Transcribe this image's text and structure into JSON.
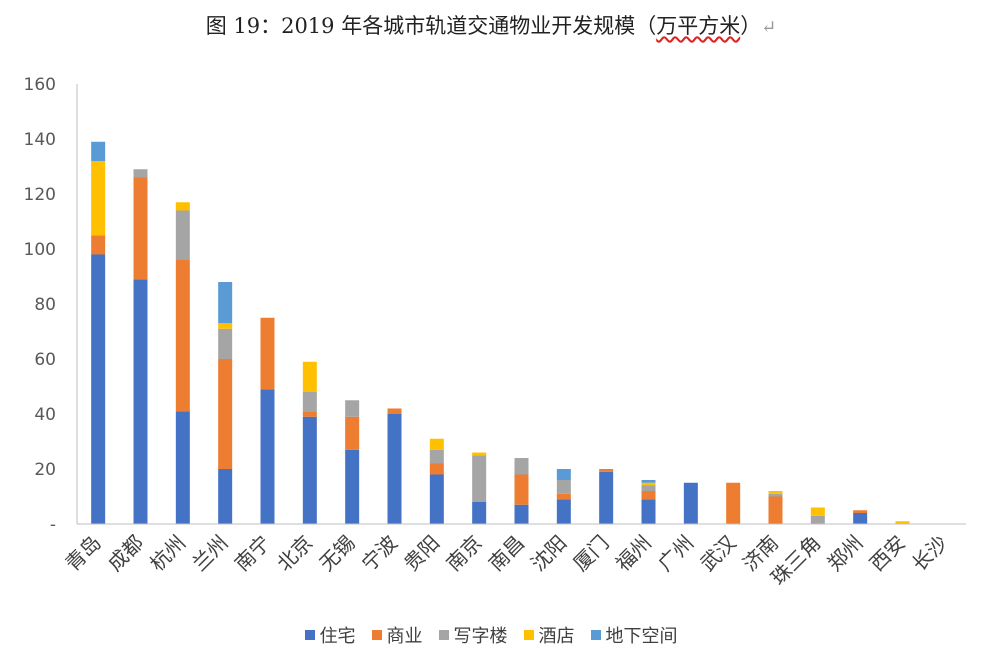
{
  "chart_data": {
    "type": "bar",
    "stacked": true,
    "title": "图 19：2019 年各城市轨道交通物业开发规模（万平方米）",
    "title_main": "图 19：2019 年各城市轨道交通物业开发规模（",
    "title_unit": "万平方米",
    "title_close": "）",
    "return_mark": "↵",
    "categories": [
      "青岛",
      "成都",
      "杭州",
      "兰州",
      "南宁",
      "北京",
      "无锡",
      "宁波",
      "贵阳",
      "南京",
      "南昌",
      "沈阳",
      "厦门",
      "福州",
      "广州",
      "武汉",
      "济南",
      "珠三角",
      "郑州",
      "西安",
      "长沙"
    ],
    "series": [
      {
        "name": "住宅",
        "color": "#4472c4",
        "values": [
          98,
          89,
          41,
          20,
          49,
          39,
          27,
          40,
          18,
          8,
          7,
          9,
          19,
          9,
          15,
          0,
          0,
          0,
          4,
          0,
          0
        ]
      },
      {
        "name": "商业",
        "color": "#ed7d31",
        "values": [
          7,
          37,
          55,
          40,
          26,
          2,
          12,
          2,
          4,
          0,
          11,
          2,
          1,
          3,
          0,
          15,
          10,
          0,
          1,
          0,
          0
        ]
      },
      {
        "name": "写字楼",
        "color": "#a5a5a5",
        "values": [
          0,
          3,
          18,
          11,
          0,
          7,
          6,
          0,
          5,
          17,
          6,
          5,
          0,
          2,
          0,
          0,
          1,
          3,
          0,
          0,
          0
        ]
      },
      {
        "name": "酒店",
        "color": "#ffc000",
        "values": [
          27,
          0,
          3,
          2,
          0,
          11,
          0,
          0,
          4,
          1,
          0,
          0,
          0,
          1,
          0,
          0,
          1,
          3,
          0,
          1,
          0
        ]
      },
      {
        "name": "地下空间",
        "color": "#5b9bd5",
        "values": [
          7,
          0,
          0,
          15,
          0,
          0,
          0,
          0,
          0,
          0,
          0,
          4,
          0,
          1,
          0,
          0,
          0,
          0,
          0,
          0,
          0
        ]
      }
    ],
    "ylim": [
      0,
      160
    ],
    "yticks": [
      0,
      20,
      40,
      60,
      80,
      100,
      120,
      140,
      160
    ],
    "ytick_labels": [
      "-",
      "20",
      "40",
      "60",
      "80",
      "100",
      "120",
      "140",
      "160"
    ],
    "xlabel": "",
    "ylabel": "",
    "grid": false,
    "legend_position": "bottom"
  }
}
